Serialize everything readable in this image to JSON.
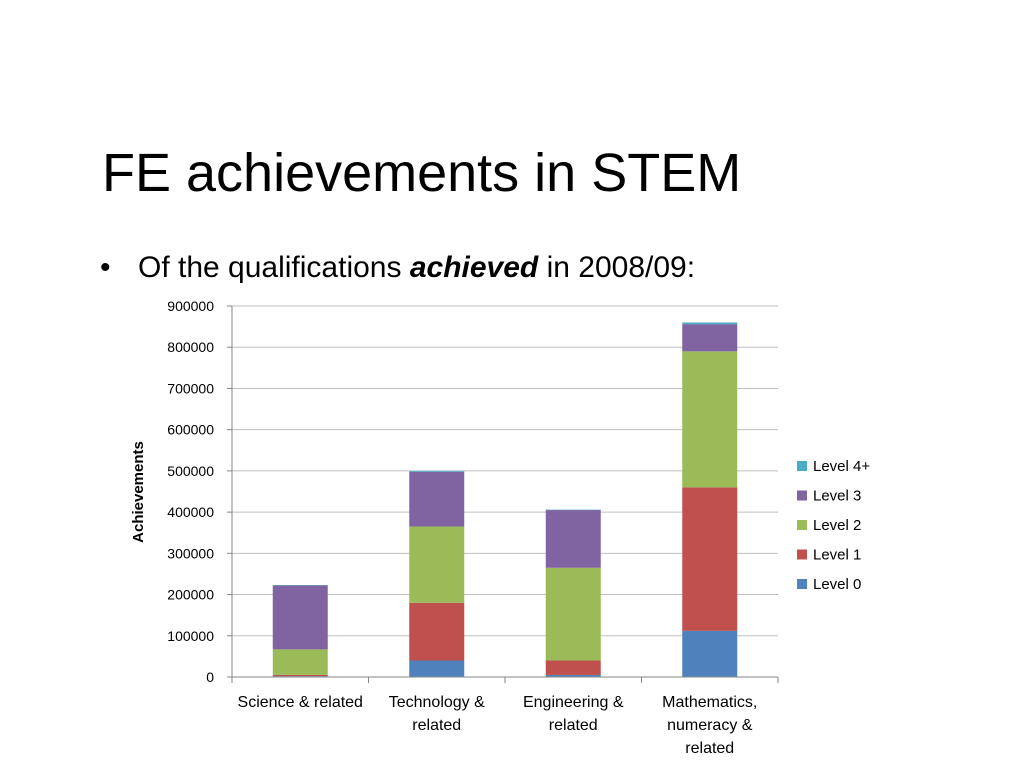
{
  "slide": {
    "title": "FE achievements in STEM",
    "bullet": {
      "symbol": "•",
      "prefix": "Of the qualifications ",
      "emphasis": "achieved",
      "suffix": " in 2008/09:"
    }
  },
  "chart_data": {
    "type": "bar",
    "stacked": true,
    "categories": [
      [
        "Science & related"
      ],
      [
        "Technology &",
        "related"
      ],
      [
        "Engineering &",
        "related"
      ],
      [
        "Mathematics,",
        "numeracy &",
        "related"
      ]
    ],
    "series": [
      {
        "name": "Level 0",
        "color": "#4f81bd",
        "values": [
          2000,
          40000,
          5000,
          112000
        ]
      },
      {
        "name": "Level 1",
        "color": "#c0504d",
        "values": [
          3000,
          140000,
          35000,
          348000
        ]
      },
      {
        "name": "Level 2",
        "color": "#9bbb59",
        "values": [
          62000,
          185000,
          225000,
          330000
        ]
      },
      {
        "name": "Level 3",
        "color": "#8064a2",
        "values": [
          155000,
          133000,
          140000,
          66000
        ]
      },
      {
        "name": "Level 4+",
        "color": "#4bacc6",
        "values": [
          1000,
          2000,
          1000,
          4000
        ]
      }
    ],
    "ylabel": "Achievements",
    "ylim": [
      0,
      900000
    ],
    "yticks": [
      0,
      100000,
      200000,
      300000,
      400000,
      500000,
      600000,
      700000,
      800000,
      900000
    ],
    "grid": true,
    "legend": "right",
    "legend_order": [
      "Level 4+",
      "Level 3",
      "Level 2",
      "Level 1",
      "Level 0"
    ]
  }
}
